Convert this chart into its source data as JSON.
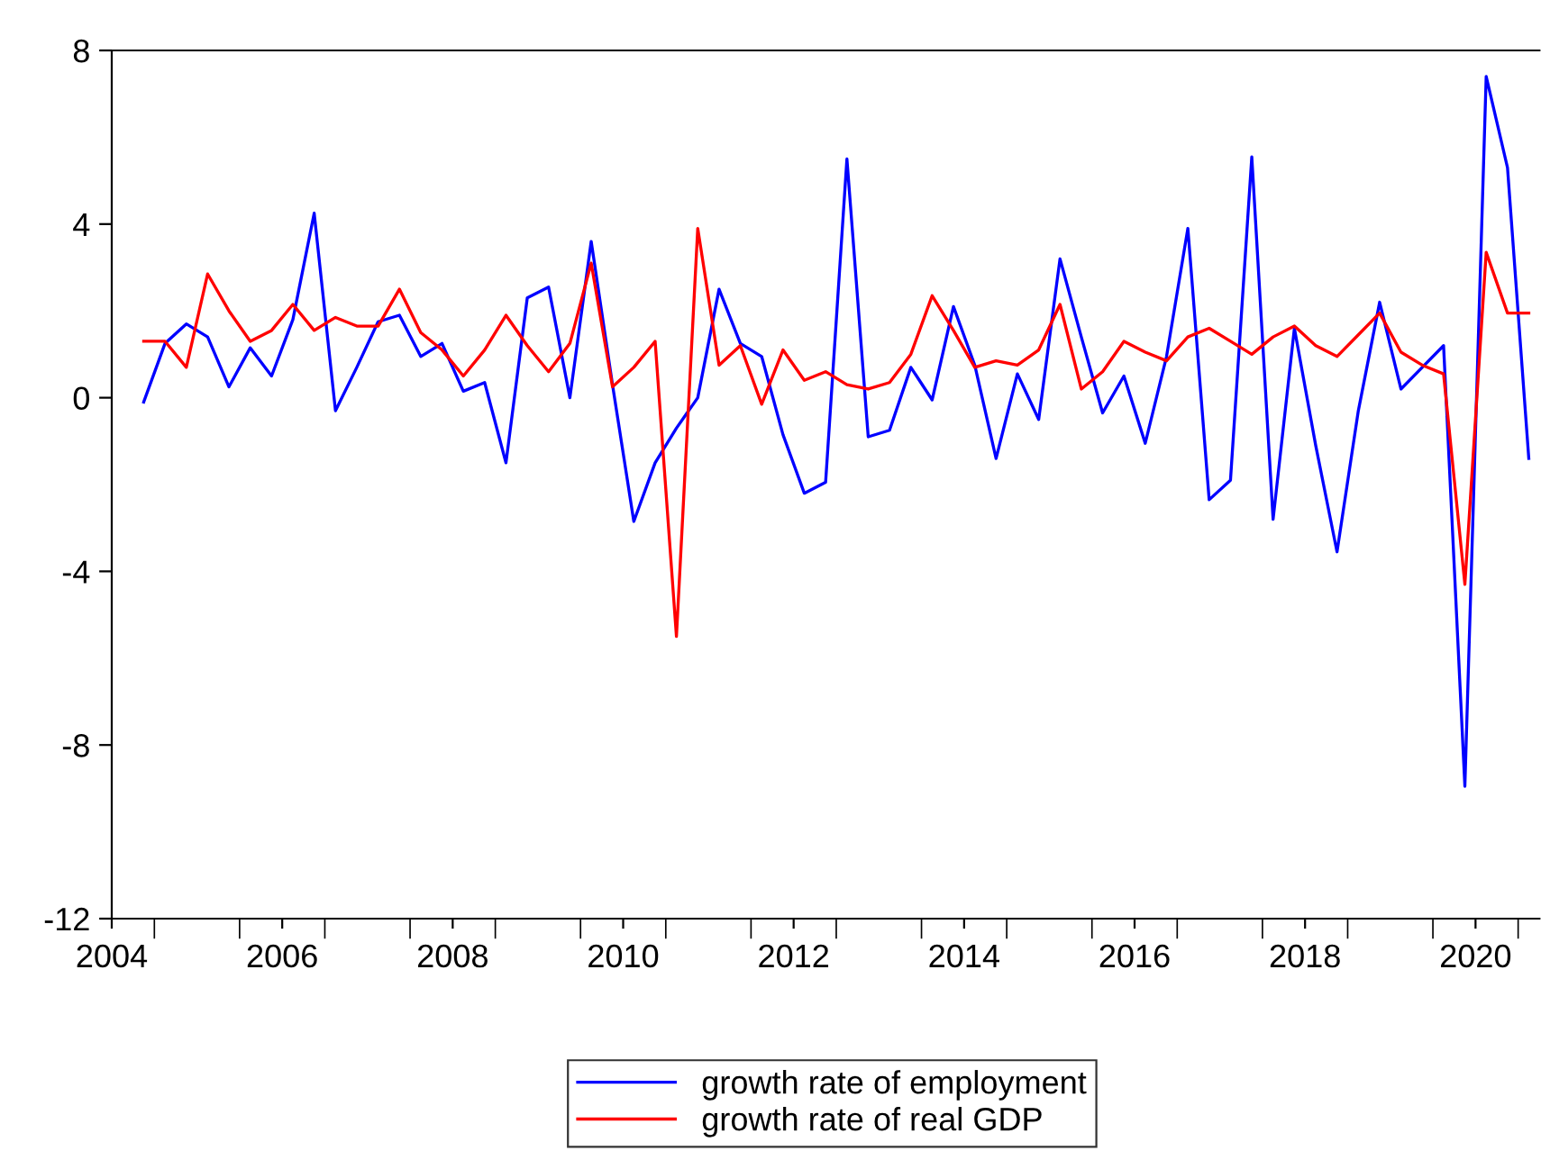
{
  "chart_data": {
    "type": "line",
    "xlim": [
      2004,
      2020.75
    ],
    "ylim": [
      -12,
      8
    ],
    "yticks": [
      -12,
      -8,
      -4,
      0,
      4,
      8
    ],
    "xticks": [
      2004,
      2006,
      2008,
      2010,
      2012,
      2014,
      2016,
      2018,
      2020,
      {
        "value": 2004.5,
        "label": null
      },
      {
        "value": 2005.5,
        "label": null
      },
      {
        "value": 2006.5,
        "label": null
      },
      {
        "value": 2007.5,
        "label": null
      },
      {
        "value": 2008.5,
        "label": null
      },
      {
        "value": 2009.5,
        "label": null
      },
      {
        "value": 2010.5,
        "label": null
      },
      {
        "value": 2011.5,
        "label": null
      },
      {
        "value": 2012.5,
        "label": null
      },
      {
        "value": 2013.5,
        "label": null
      },
      {
        "value": 2014.5,
        "label": null
      },
      {
        "value": 2015.5,
        "label": null
      },
      {
        "value": 2016.5,
        "label": null
      },
      {
        "value": 2017.5,
        "label": null
      },
      {
        "value": 2018.5,
        "label": null
      },
      {
        "value": 2019.5,
        "label": null
      },
      {
        "value": 2020.5,
        "label": null
      }
    ],
    "x": [
      2004.375,
      2004.625,
      2004.875,
      2005.125,
      2005.375,
      2005.625,
      2005.875,
      2006.125,
      2006.375,
      2006.625,
      2006.875,
      2007.125,
      2007.375,
      2007.625,
      2007.875,
      2008.125,
      2008.375,
      2008.625,
      2008.875,
      2009.125,
      2009.375,
      2009.625,
      2009.875,
      2010.125,
      2010.375,
      2010.625,
      2010.875,
      2011.125,
      2011.375,
      2011.625,
      2011.875,
      2012.125,
      2012.375,
      2012.625,
      2012.875,
      2013.125,
      2013.375,
      2013.625,
      2013.875,
      2014.125,
      2014.375,
      2014.625,
      2014.875,
      2015.125,
      2015.375,
      2015.625,
      2015.875,
      2016.125,
      2016.375,
      2016.625,
      2016.875,
      2017.125,
      2017.375,
      2017.625,
      2017.875,
      2018.125,
      2018.375,
      2018.625,
      2018.875,
      2019.125,
      2019.375,
      2019.625,
      2019.875,
      2020.125,
      2020.375,
      2020.625
    ],
    "series": [
      {
        "name": "growth rate of employment",
        "color": "#0000ff",
        "values": [
          -0.1,
          1.25,
          1.7,
          1.4,
          0.25,
          1.15,
          0.5,
          1.8,
          4.25,
          -0.3,
          0.7,
          1.75,
          1.9,
          0.95,
          1.25,
          0.15,
          0.35,
          -1.5,
          2.3,
          2.55,
          0.0,
          3.6,
          0.3,
          -2.85,
          -1.5,
          -0.7,
          0.0,
          2.5,
          1.25,
          0.95,
          -0.85,
          -2.2,
          -1.95,
          5.5,
          -0.9,
          -0.75,
          0.7,
          -0.05,
          2.1,
          0.75,
          -1.4,
          0.55,
          -0.5,
          3.2,
          1.4,
          -0.35,
          0.5,
          -1.05,
          0.95,
          3.9,
          -2.35,
          -1.9,
          5.55,
          -2.8,
          1.6,
          -1.1,
          -3.55,
          -0.3,
          2.2,
          0.2,
          0.7,
          1.2,
          -8.95,
          7.4,
          5.3,
          -1.4
        ]
      },
      {
        "name": "growth rate of real GDP",
        "color": "#ff0000",
        "values": [
          1.3,
          1.3,
          0.7,
          2.85,
          2.0,
          1.3,
          1.55,
          2.15,
          1.55,
          1.85,
          1.65,
          1.65,
          2.5,
          1.5,
          1.1,
          0.5,
          1.1,
          1.9,
          1.2,
          0.6,
          1.25,
          3.1,
          0.25,
          0.7,
          1.3,
          -5.5,
          3.9,
          0.75,
          1.2,
          -0.15,
          1.1,
          0.4,
          0.6,
          0.3,
          0.2,
          0.35,
          1.0,
          2.35,
          1.55,
          0.7,
          0.85,
          0.75,
          1.1,
          2.15,
          0.2,
          0.6,
          1.3,
          1.05,
          0.85,
          1.4,
          1.6,
          1.3,
          1.0,
          1.4,
          1.65,
          1.2,
          0.95,
          1.45,
          1.95,
          1.05,
          0.75,
          0.55,
          -4.3,
          3.35,
          1.95,
          1.95
        ]
      }
    ],
    "grid": false,
    "legend": "bottom",
    "line_style": "solid",
    "marker": "none"
  }
}
